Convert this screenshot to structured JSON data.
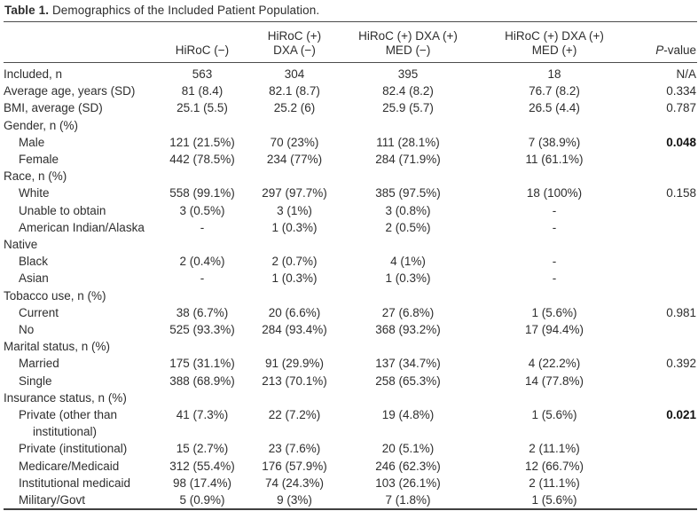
{
  "caption": {
    "number": "Table 1.",
    "text": "Demographics of the Included Patient Population."
  },
  "header": {
    "col2": {
      "line1": "HiRoC (−)"
    },
    "col3": {
      "line1": "HiRoC (+)",
      "line2": "DXA (−)"
    },
    "col4": {
      "line1": "HiRoC (+) DXA (+)",
      "line2": "MED (−)"
    },
    "col5": {
      "line1": "HiRoC (+) DXA (+)",
      "line2": "MED (+)"
    },
    "pvalue": {
      "prefix": "P",
      "suffix": "-value"
    }
  },
  "table": {
    "rows": [
      {
        "label_lines": [
          {
            "text": "Included, n",
            "indent": 0
          }
        ],
        "values": [
          "563",
          "304",
          "395",
          "18"
        ],
        "p": "N/A",
        "p_bold": false
      },
      {
        "label_lines": [
          {
            "text": "Average age, years (SD)",
            "indent": 0
          }
        ],
        "values": [
          "81 (8.4)",
          "82.1 (8.7)",
          "82.4 (8.2)",
          "76.7 (8.2)"
        ],
        "p": "0.334",
        "p_bold": false
      },
      {
        "label_lines": [
          {
            "text": "BMI, average (SD)",
            "indent": 0
          }
        ],
        "values": [
          "25.1 (5.5)",
          "25.2 (6)",
          "25.9 (5.7)",
          "26.5 (4.4)"
        ],
        "p": "0.787",
        "p_bold": false
      },
      {
        "label_lines": [
          {
            "text": "Gender, n (%)",
            "indent": 0
          }
        ],
        "values": [
          "",
          "",
          "",
          ""
        ],
        "p": "",
        "p_bold": false
      },
      {
        "label_lines": [
          {
            "text": "Male",
            "indent": 1
          }
        ],
        "values": [
          "121 (21.5%)",
          "70 (23%)",
          "111 (28.1%)",
          "7 (38.9%)"
        ],
        "p": "0.048",
        "p_bold": true
      },
      {
        "label_lines": [
          {
            "text": "Female",
            "indent": 1
          }
        ],
        "values": [
          "442 (78.5%)",
          "234 (77%)",
          "284 (71.9%)",
          "11 (61.1%)"
        ],
        "p": "",
        "p_bold": false
      },
      {
        "label_lines": [
          {
            "text": "Race, n (%)",
            "indent": 0
          }
        ],
        "values": [
          "",
          "",
          "",
          ""
        ],
        "p": "",
        "p_bold": false
      },
      {
        "label_lines": [
          {
            "text": "White",
            "indent": 1
          }
        ],
        "values": [
          "558 (99.1%)",
          "297 (97.7%)",
          "385 (97.5%)",
          "18 (100%)"
        ],
        "p": "0.158",
        "p_bold": false
      },
      {
        "label_lines": [
          {
            "text": "Unable to obtain",
            "indent": 1
          }
        ],
        "values": [
          "3 (0.5%)",
          "3 (1%)",
          "3 (0.8%)",
          "-"
        ],
        "p": "",
        "p_bold": false
      },
      {
        "label_lines": [
          {
            "text": "American Indian/Alaska",
            "indent": 1
          },
          {
            "text": "Native",
            "indent": 0
          }
        ],
        "values": [
          "-",
          "1 (0.3%)",
          "2 (0.5%)",
          "-"
        ],
        "p": "",
        "p_bold": false
      },
      {
        "label_lines": [
          {
            "text": "Black",
            "indent": 1
          }
        ],
        "values": [
          "2 (0.4%)",
          "2 (0.7%)",
          "4 (1%)",
          "-"
        ],
        "p": "",
        "p_bold": false
      },
      {
        "label_lines": [
          {
            "text": "Asian",
            "indent": 1
          }
        ],
        "values": [
          "-",
          "1 (0.3%)",
          "1 (0.3%)",
          "-"
        ],
        "p": "",
        "p_bold": false
      },
      {
        "label_lines": [
          {
            "text": "Tobacco use, n (%)",
            "indent": 0
          }
        ],
        "values": [
          "",
          "",
          "",
          ""
        ],
        "p": "",
        "p_bold": false
      },
      {
        "label_lines": [
          {
            "text": "Current",
            "indent": 1
          }
        ],
        "values": [
          "38 (6.7%)",
          "20 (6.6%)",
          "27 (6.8%)",
          "1 (5.6%)"
        ],
        "p": "0.981",
        "p_bold": false
      },
      {
        "label_lines": [
          {
            "text": "No",
            "indent": 1
          }
        ],
        "values": [
          "525 (93.3%)",
          "284 (93.4%)",
          "368 (93.2%)",
          "17 (94.4%)"
        ],
        "p": "",
        "p_bold": false
      },
      {
        "label_lines": [
          {
            "text": "Marital status, n (%)",
            "indent": 0
          }
        ],
        "values": [
          "",
          "",
          "",
          ""
        ],
        "p": "",
        "p_bold": false
      },
      {
        "label_lines": [
          {
            "text": "Married",
            "indent": 1
          }
        ],
        "values": [
          "175 (31.1%)",
          "91 (29.9%)",
          "137 (34.7%)",
          "4 (22.2%)"
        ],
        "p": "0.392",
        "p_bold": false
      },
      {
        "label_lines": [
          {
            "text": "Single",
            "indent": 1
          }
        ],
        "values": [
          "388 (68.9%)",
          "213 (70.1%)",
          "258 (65.3%)",
          "14 (77.8%)"
        ],
        "p": "",
        "p_bold": false
      },
      {
        "label_lines": [
          {
            "text": "Insurance status, n (%)",
            "indent": 0
          }
        ],
        "values": [
          "",
          "",
          "",
          ""
        ],
        "p": "",
        "p_bold": false
      },
      {
        "label_lines": [
          {
            "text": "Private (other than",
            "indent": 1
          },
          {
            "text": "institutional)",
            "indent": 2
          }
        ],
        "values": [
          "41 (7.3%)",
          "22 (7.2%)",
          "19 (4.8%)",
          "1 (5.6%)"
        ],
        "p": "0.021",
        "p_bold": true
      },
      {
        "label_lines": [
          {
            "text": "Private (institutional)",
            "indent": 1
          }
        ],
        "values": [
          "15 (2.7%)",
          "23 (7.6%)",
          "20 (5.1%)",
          "2 (11.1%)"
        ],
        "p": "",
        "p_bold": false
      },
      {
        "label_lines": [
          {
            "text": "Medicare/Medicaid",
            "indent": 1
          }
        ],
        "values": [
          "312 (55.4%)",
          "176 (57.9%)",
          "246 (62.3%)",
          "12 (66.7%)"
        ],
        "p": "",
        "p_bold": false
      },
      {
        "label_lines": [
          {
            "text": "Institutional medicaid",
            "indent": 1
          }
        ],
        "values": [
          "98 (17.4%)",
          "74 (24.3%)",
          "103 (26.1%)",
          "2 (11.1%)"
        ],
        "p": "",
        "p_bold": false
      },
      {
        "label_lines": [
          {
            "text": "Military/Govt",
            "indent": 1
          }
        ],
        "values": [
          "5 (0.9%)",
          "9 (3%)",
          "7 (1.8%)",
          "1 (5.6%)"
        ],
        "p": "",
        "p_bold": false
      }
    ]
  }
}
